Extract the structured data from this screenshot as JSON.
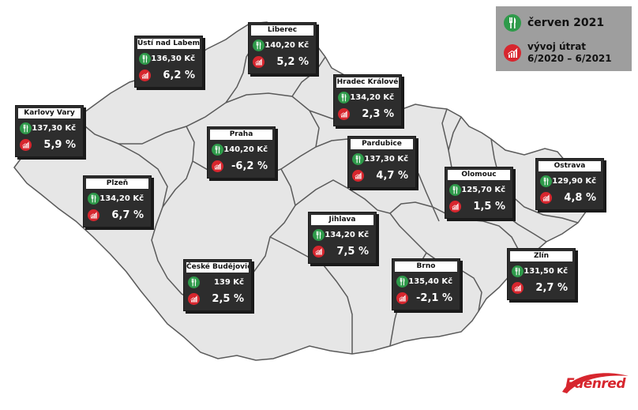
{
  "legend": {
    "month_label": "červen 2021",
    "change_label": "vývoj útrat",
    "period_label": "6/2020 – 6/2021",
    "colors": {
      "meal": "#2e9a4a",
      "change": "#d7262e",
      "box": "#9e9e9e"
    }
  },
  "icons": {
    "meal": "fork-knife-icon",
    "change": "bar-chart-icon"
  },
  "regions": [
    {
      "name": "Ústí nad Labem",
      "price": "136,30 Kč",
      "change": "6,2 %"
    },
    {
      "name": "Liberec",
      "price": "140,20 Kč",
      "change": "5,2 %"
    },
    {
      "name": "Hradec Králové",
      "price": "134,20 Kč",
      "change": "2,3 %"
    },
    {
      "name": "Karlovy Vary",
      "price": "137,30 Kč",
      "change": "5,9 %"
    },
    {
      "name": "Praha",
      "price": "140,20 Kč",
      "change": "-6,2 %"
    },
    {
      "name": "Pardubice",
      "price": "137,30 Kč",
      "change": "4,7 %"
    },
    {
      "name": "Plzeň",
      "price": "134,20 Kč",
      "change": "6,7 %"
    },
    {
      "name": "Olomouc",
      "price": "125,70 Kč",
      "change": "1,5 %"
    },
    {
      "name": "Ostrava",
      "price": "129,90 Kč",
      "change": "4,8 %"
    },
    {
      "name": "Jihlava",
      "price": "134,20 Kč",
      "change": "7,5 %"
    },
    {
      "name": "České Budějovice",
      "price": "139 Kč",
      "change": "2,5 %"
    },
    {
      "name": "Brno",
      "price": "135,40 Kč",
      "change": "-2,1 %"
    },
    {
      "name": "Zlín",
      "price": "131,50 Kč",
      "change": "2,7 %"
    }
  ],
  "brand": {
    "logo_text": "Edenred",
    "color": "#d7262e"
  },
  "map": {
    "fill": "#e6e6e6",
    "stroke": "#5a5a5a"
  }
}
